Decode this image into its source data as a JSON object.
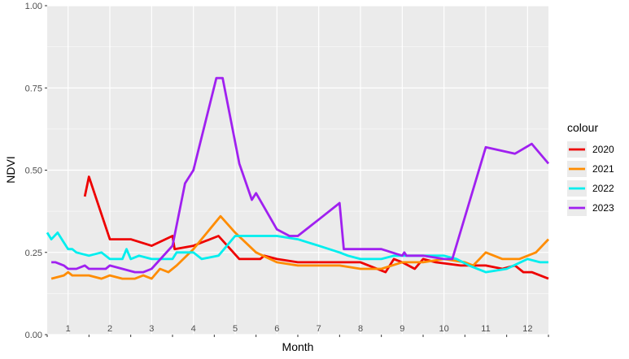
{
  "chart_data": {
    "type": "line",
    "xlabel": "Month",
    "ylabel": "NDVI",
    "ylim": [
      0,
      1
    ],
    "xlim": [
      0.5,
      12.5
    ],
    "x_ticks": [
      "1",
      "2",
      "3",
      "4",
      "5",
      "6",
      "7",
      "8",
      "9",
      "10",
      "11",
      "12"
    ],
    "y_ticks": [
      "0.00",
      "0.25",
      "0.50",
      "0.75",
      "1.00"
    ],
    "y_tick_values": [
      0,
      0.25,
      0.5,
      0.75,
      1.0
    ],
    "grid": true,
    "panel_background": "#ebebeb",
    "grid_color": "#ffffff",
    "legend": {
      "title": "colour",
      "position": "right"
    },
    "series": [
      {
        "name": "2020",
        "color": "#ee0000",
        "points": [
          [
            1.4,
            0.42
          ],
          [
            1.5,
            0.48
          ],
          [
            2.0,
            0.29
          ],
          [
            2.5,
            0.29
          ],
          [
            3.0,
            0.27
          ],
          [
            3.5,
            0.3
          ],
          [
            3.55,
            0.26
          ],
          [
            4.0,
            0.27
          ],
          [
            4.6,
            0.3
          ],
          [
            5.1,
            0.23
          ],
          [
            5.6,
            0.23
          ],
          [
            5.7,
            0.24
          ],
          [
            6.0,
            0.23
          ],
          [
            6.5,
            0.22
          ],
          [
            7.5,
            0.22
          ],
          [
            7.6,
            0.22
          ],
          [
            8.0,
            0.22
          ],
          [
            8.6,
            0.19
          ],
          [
            8.8,
            0.23
          ],
          [
            9.0,
            0.22
          ],
          [
            9.3,
            0.2
          ],
          [
            9.5,
            0.23
          ],
          [
            9.8,
            0.22
          ],
          [
            10.4,
            0.21
          ],
          [
            11.0,
            0.21
          ],
          [
            11.4,
            0.2
          ],
          [
            11.7,
            0.21
          ],
          [
            11.9,
            0.19
          ],
          [
            12.1,
            0.19
          ],
          [
            12.5,
            0.17
          ]
        ]
      },
      {
        "name": "2021",
        "color": "#ff8c00",
        "points": [
          [
            0.6,
            0.17
          ],
          [
            0.9,
            0.18
          ],
          [
            1.0,
            0.19
          ],
          [
            1.1,
            0.18
          ],
          [
            1.5,
            0.18
          ],
          [
            1.8,
            0.17
          ],
          [
            2.0,
            0.18
          ],
          [
            2.3,
            0.17
          ],
          [
            2.6,
            0.17
          ],
          [
            2.8,
            0.18
          ],
          [
            3.0,
            0.17
          ],
          [
            3.2,
            0.2
          ],
          [
            3.4,
            0.19
          ],
          [
            3.6,
            0.21
          ],
          [
            4.0,
            0.26
          ],
          [
            4.65,
            0.36
          ],
          [
            5.0,
            0.31
          ],
          [
            5.5,
            0.25
          ],
          [
            6.0,
            0.22
          ],
          [
            6.5,
            0.21
          ],
          [
            7.0,
            0.21
          ],
          [
            7.5,
            0.21
          ],
          [
            8.0,
            0.2
          ],
          [
            8.5,
            0.2
          ],
          [
            9.0,
            0.22
          ],
          [
            9.5,
            0.22
          ],
          [
            10.0,
            0.23
          ],
          [
            10.5,
            0.22
          ],
          [
            10.7,
            0.21
          ],
          [
            11.0,
            0.25
          ],
          [
            11.4,
            0.23
          ],
          [
            11.8,
            0.23
          ],
          [
            12.2,
            0.25
          ],
          [
            12.5,
            0.29
          ]
        ]
      },
      {
        "name": "2022",
        "color": "#00eeee",
        "points": [
          [
            0.5,
            0.31
          ],
          [
            0.6,
            0.29
          ],
          [
            0.75,
            0.31
          ],
          [
            0.9,
            0.28
          ],
          [
            1.0,
            0.26
          ],
          [
            1.1,
            0.26
          ],
          [
            1.2,
            0.25
          ],
          [
            1.5,
            0.24
          ],
          [
            1.8,
            0.25
          ],
          [
            2.0,
            0.23
          ],
          [
            2.3,
            0.23
          ],
          [
            2.4,
            0.26
          ],
          [
            2.5,
            0.23
          ],
          [
            2.7,
            0.24
          ],
          [
            3.0,
            0.23
          ],
          [
            3.5,
            0.23
          ],
          [
            3.6,
            0.25
          ],
          [
            4.0,
            0.25
          ],
          [
            4.2,
            0.23
          ],
          [
            4.6,
            0.24
          ],
          [
            5.0,
            0.3
          ],
          [
            5.5,
            0.3
          ],
          [
            6.0,
            0.3
          ],
          [
            6.5,
            0.29
          ],
          [
            7.0,
            0.27
          ],
          [
            7.5,
            0.25
          ],
          [
            7.7,
            0.24
          ],
          [
            8.0,
            0.23
          ],
          [
            8.5,
            0.23
          ],
          [
            8.8,
            0.24
          ],
          [
            9.0,
            0.24
          ],
          [
            9.5,
            0.24
          ],
          [
            10.0,
            0.24
          ],
          [
            10.3,
            0.23
          ],
          [
            10.6,
            0.21
          ],
          [
            11.0,
            0.19
          ],
          [
            11.5,
            0.2
          ],
          [
            12.0,
            0.23
          ],
          [
            12.3,
            0.22
          ],
          [
            12.5,
            0.22
          ]
        ]
      },
      {
        "name": "2023",
        "color": "#a020f0",
        "points": [
          [
            0.6,
            0.22
          ],
          [
            0.7,
            0.22
          ],
          [
            0.9,
            0.21
          ],
          [
            1.0,
            0.2
          ],
          [
            1.2,
            0.2
          ],
          [
            1.4,
            0.21
          ],
          [
            1.5,
            0.2
          ],
          [
            1.8,
            0.2
          ],
          [
            1.9,
            0.2
          ],
          [
            2.0,
            0.21
          ],
          [
            2.3,
            0.2
          ],
          [
            2.6,
            0.19
          ],
          [
            2.8,
            0.19
          ],
          [
            3.0,
            0.2
          ],
          [
            3.5,
            0.27
          ],
          [
            3.8,
            0.46
          ],
          [
            4.0,
            0.5
          ],
          [
            4.55,
            0.78
          ],
          [
            4.7,
            0.78
          ],
          [
            5.1,
            0.52
          ],
          [
            5.4,
            0.41
          ],
          [
            5.5,
            0.43
          ],
          [
            6.0,
            0.32
          ],
          [
            6.3,
            0.3
          ],
          [
            6.5,
            0.3
          ],
          [
            7.0,
            0.35
          ],
          [
            7.5,
            0.4
          ],
          [
            7.6,
            0.26
          ],
          [
            8.0,
            0.26
          ],
          [
            8.5,
            0.26
          ],
          [
            9.0,
            0.24
          ],
          [
            9.05,
            0.25
          ],
          [
            9.1,
            0.24
          ],
          [
            9.5,
            0.24
          ],
          [
            10.0,
            0.23
          ],
          [
            10.2,
            0.23
          ],
          [
            11.0,
            0.57
          ],
          [
            11.7,
            0.55
          ],
          [
            12.1,
            0.58
          ],
          [
            12.5,
            0.52
          ]
        ]
      }
    ]
  }
}
